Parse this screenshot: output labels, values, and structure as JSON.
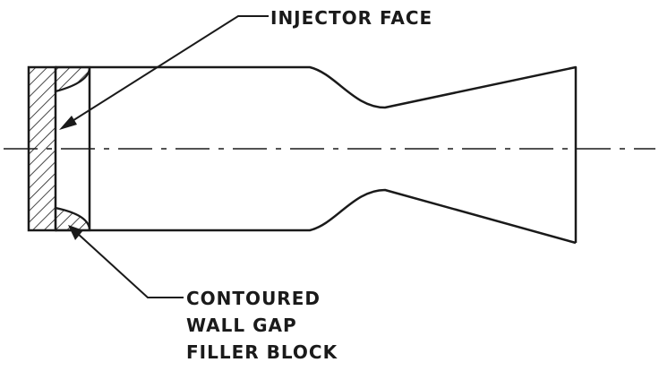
{
  "labels": {
    "injector_face": "INJECTOR FACE",
    "filler_block_line1": "CONTOURED",
    "filler_block_line2": "WALL GAP",
    "filler_block_line3": "FILLER BLOCK"
  },
  "colors": {
    "ink": "#1a1a1a",
    "background": "#ffffff"
  }
}
